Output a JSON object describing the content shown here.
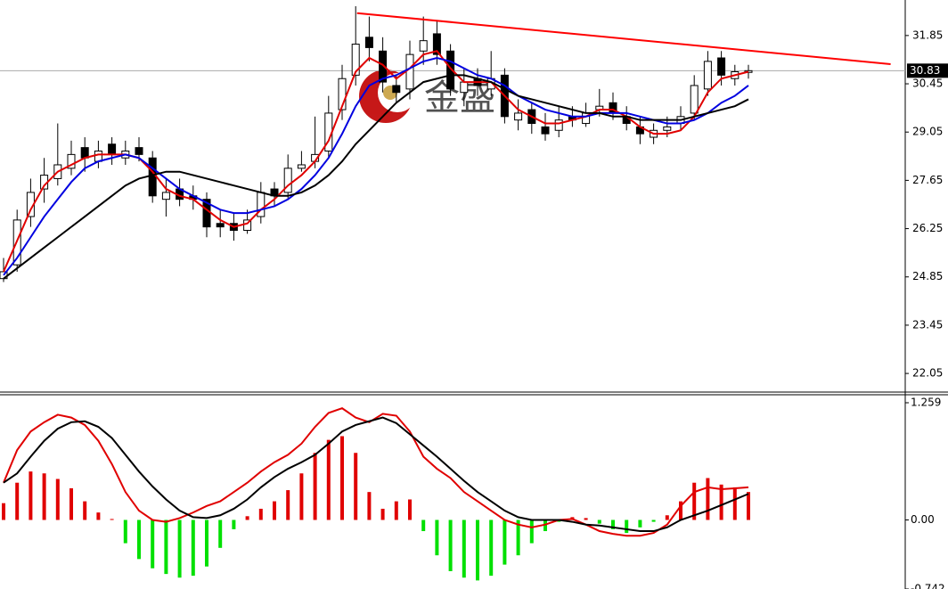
{
  "chart_data": [
    {
      "type": "candlestick",
      "open": [
        24.8,
        25.2,
        26.6,
        27.4,
        27.7,
        28.0,
        28.6,
        28.2,
        28.7,
        28.3,
        28.6,
        28.3,
        27.1,
        27.4,
        27.2,
        27.1,
        26.4,
        26.4,
        26.2,
        26.6,
        27.4,
        27.3,
        28.0,
        28.2,
        28.5,
        29.7,
        30.7,
        31.8,
        31.4,
        30.4,
        30.3,
        31.4,
        31.9,
        31.4,
        30.2,
        30.6,
        30.3,
        30.7,
        29.4,
        29.7,
        29.2,
        29.1,
        29.5,
        29.3,
        29.7,
        29.9,
        29.5,
        29.2,
        28.9,
        29.1,
        29.3,
        29.6,
        30.3,
        31.2,
        30.6,
        30.78
      ],
      "high": [
        25.4,
        26.8,
        27.7,
        28.3,
        29.3,
        28.8,
        28.9,
        28.8,
        28.9,
        28.8,
        28.9,
        28.5,
        27.7,
        27.7,
        27.5,
        27.3,
        26.8,
        26.7,
        26.8,
        27.6,
        27.6,
        28.4,
        28.5,
        29.5,
        30.1,
        31.0,
        32.7,
        32.4,
        31.8,
        30.7,
        31.7,
        32.4,
        32.3,
        31.6,
        30.9,
        30.9,
        31.4,
        30.9,
        30.0,
        29.9,
        29.6,
        29.8,
        29.8,
        29.9,
        30.3,
        30.2,
        29.8,
        29.5,
        29.3,
        29.5,
        29.8,
        30.7,
        31.4,
        31.4,
        31.0,
        31.0
      ],
      "low": [
        24.7,
        25.0,
        26.3,
        27.0,
        27.5,
        27.8,
        27.9,
        28.0,
        28.1,
        28.1,
        28.2,
        27.0,
        26.6,
        26.9,
        26.8,
        26.0,
        26.0,
        25.9,
        26.1,
        26.4,
        26.9,
        27.1,
        27.9,
        28.0,
        28.3,
        29.4,
        30.4,
        31.1,
        30.2,
        29.9,
        30.0,
        31.0,
        31.0,
        30.1,
        29.8,
        30.1,
        30.1,
        29.3,
        29.1,
        29.0,
        28.8,
        28.9,
        29.2,
        29.2,
        29.5,
        29.4,
        29.1,
        28.7,
        28.7,
        28.9,
        29.1,
        29.4,
        30.1,
        30.4,
        30.4,
        30.6
      ],
      "close": [
        25.0,
        26.5,
        27.3,
        27.8,
        28.1,
        28.4,
        28.3,
        28.5,
        28.4,
        28.5,
        28.4,
        27.2,
        27.3,
        27.1,
        27.1,
        26.3,
        26.3,
        26.2,
        26.5,
        27.3,
        27.2,
        28.0,
        28.1,
        28.4,
        29.6,
        30.6,
        31.6,
        31.5,
        30.5,
        30.2,
        31.3,
        31.7,
        31.3,
        30.3,
        30.5,
        30.4,
        30.6,
        29.5,
        29.6,
        29.3,
        29.0,
        29.4,
        29.4,
        29.6,
        29.8,
        29.6,
        29.3,
        29.0,
        29.1,
        29.2,
        29.5,
        30.4,
        31.1,
        30.7,
        30.8,
        30.83
      ],
      "lines": [
        {
          "color": "#e00000",
          "values": [
            25.0,
            25.9,
            26.8,
            27.5,
            27.9,
            28.1,
            28.3,
            28.4,
            28.4,
            28.4,
            28.3,
            27.9,
            27.4,
            27.2,
            27.1,
            26.8,
            26.5,
            26.3,
            26.4,
            26.8,
            27.1,
            27.5,
            27.8,
            28.2,
            28.8,
            29.8,
            30.8,
            31.2,
            31.0,
            30.6,
            30.9,
            31.3,
            31.4,
            30.9,
            30.5,
            30.5,
            30.5,
            30.1,
            29.7,
            29.5,
            29.3,
            29.3,
            29.4,
            29.5,
            29.7,
            29.7,
            29.5,
            29.2,
            29.0,
            29.0,
            29.1,
            29.5,
            30.2,
            30.6,
            30.7,
            30.8
          ]
        },
        {
          "color": "#0000e0",
          "values": [
            24.9,
            25.4,
            26.0,
            26.6,
            27.1,
            27.6,
            28.0,
            28.2,
            28.3,
            28.4,
            28.3,
            28.0,
            27.7,
            27.4,
            27.2,
            27.0,
            26.8,
            26.7,
            26.7,
            26.8,
            26.9,
            27.1,
            27.4,
            27.8,
            28.3,
            29.0,
            29.8,
            30.4,
            30.6,
            30.7,
            30.9,
            31.1,
            31.2,
            31.1,
            30.9,
            30.7,
            30.6,
            30.4,
            30.1,
            29.9,
            29.7,
            29.6,
            29.5,
            29.5,
            29.6,
            29.6,
            29.6,
            29.5,
            29.4,
            29.3,
            29.3,
            29.4,
            29.6,
            29.9,
            30.1,
            30.4
          ]
        },
        {
          "color": "#000000",
          "values": [
            24.8,
            25.1,
            25.4,
            25.7,
            26.0,
            26.3,
            26.6,
            26.9,
            27.2,
            27.5,
            27.7,
            27.8,
            27.9,
            27.9,
            27.8,
            27.7,
            27.6,
            27.5,
            27.4,
            27.3,
            27.2,
            27.2,
            27.3,
            27.5,
            27.8,
            28.2,
            28.7,
            29.1,
            29.5,
            29.9,
            30.2,
            30.5,
            30.6,
            30.7,
            30.7,
            30.6,
            30.5,
            30.3,
            30.1,
            30.0,
            29.9,
            29.8,
            29.7,
            29.6,
            29.6,
            29.5,
            29.5,
            29.4,
            29.4,
            29.4,
            29.4,
            29.5,
            29.6,
            29.7,
            29.8,
            30.0
          ]
        }
      ],
      "trendline": {
        "color": "#ff0000",
        "x": [
          26.1,
          65.5
        ],
        "y": [
          32.5,
          31.02
        ]
      },
      "last_price": 30.83,
      "watermark": "金盛",
      "ylim": [
        21.51,
        32.88
      ],
      "yticks": [
        31.85,
        30.45,
        29.05,
        27.65,
        26.25,
        24.85,
        23.45,
        22.05
      ]
    },
    {
      "type": "macd",
      "histogram": [
        0.18,
        0.4,
        0.52,
        0.5,
        0.44,
        0.34,
        0.2,
        0.08,
        0.01,
        -0.25,
        -0.42,
        -0.52,
        -0.58,
        -0.62,
        -0.6,
        -0.5,
        -0.3,
        -0.1,
        0.04,
        0.12,
        0.2,
        0.32,
        0.5,
        0.72,
        0.86,
        0.9,
        0.72,
        0.3,
        0.12,
        0.2,
        0.22,
        -0.12,
        -0.38,
        -0.55,
        -0.62,
        -0.65,
        -0.6,
        -0.48,
        -0.38,
        -0.25,
        -0.12,
        -0.02,
        0.03,
        0.02,
        -0.04,
        -0.1,
        -0.14,
        -0.08,
        -0.02,
        0.05,
        0.2,
        0.4,
        0.45,
        0.38,
        0.35,
        0.3
      ],
      "up_color": "#e00000",
      "down_color": "#00e000",
      "lines": [
        {
          "color": "#e00000",
          "values": [
            0.4,
            0.75,
            0.95,
            1.05,
            1.13,
            1.1,
            1.02,
            0.85,
            0.6,
            0.3,
            0.1,
            0,
            -0.02,
            0.02,
            0.08,
            0.15,
            0.2,
            0.3,
            0.4,
            0.52,
            0.62,
            0.7,
            0.82,
            1.0,
            1.15,
            1.2,
            1.1,
            1.05,
            1.14,
            1.12,
            0.95,
            0.68,
            0.55,
            0.45,
            0.3,
            0.2,
            0.1,
            0,
            -0.05,
            -0.08,
            -0.05,
            0,
            0.01,
            -0.05,
            -0.12,
            -0.15,
            -0.17,
            -0.17,
            -0.14,
            -0.05,
            0.15,
            0.3,
            0.35,
            0.33,
            0.34,
            0.35
          ]
        },
        {
          "color": "#000000",
          "values": [
            0.4,
            0.5,
            0.68,
            0.85,
            0.98,
            1.05,
            1.06,
            1.0,
            0.88,
            0.7,
            0.52,
            0.36,
            0.22,
            0.1,
            0.03,
            0.02,
            0.05,
            0.12,
            0.22,
            0.35,
            0.46,
            0.55,
            0.62,
            0.7,
            0.82,
            0.95,
            1.02,
            1.06,
            1.1,
            1.04,
            0.92,
            0.8,
            0.68,
            0.55,
            0.42,
            0.3,
            0.2,
            0.1,
            0.03,
            0,
            0,
            0,
            -0.02,
            -0.05,
            -0.06,
            -0.08,
            -0.1,
            -0.12,
            -0.12,
            -0.08,
            0,
            0.05,
            0.1,
            0.16,
            0.22,
            0.28
          ]
        }
      ],
      "ylim": [
        -0.742,
        1.345
      ],
      "yticks": [
        1.259,
        {
          "value": 0,
          "label": "0.00"
        },
        -0.742
      ]
    }
  ]
}
